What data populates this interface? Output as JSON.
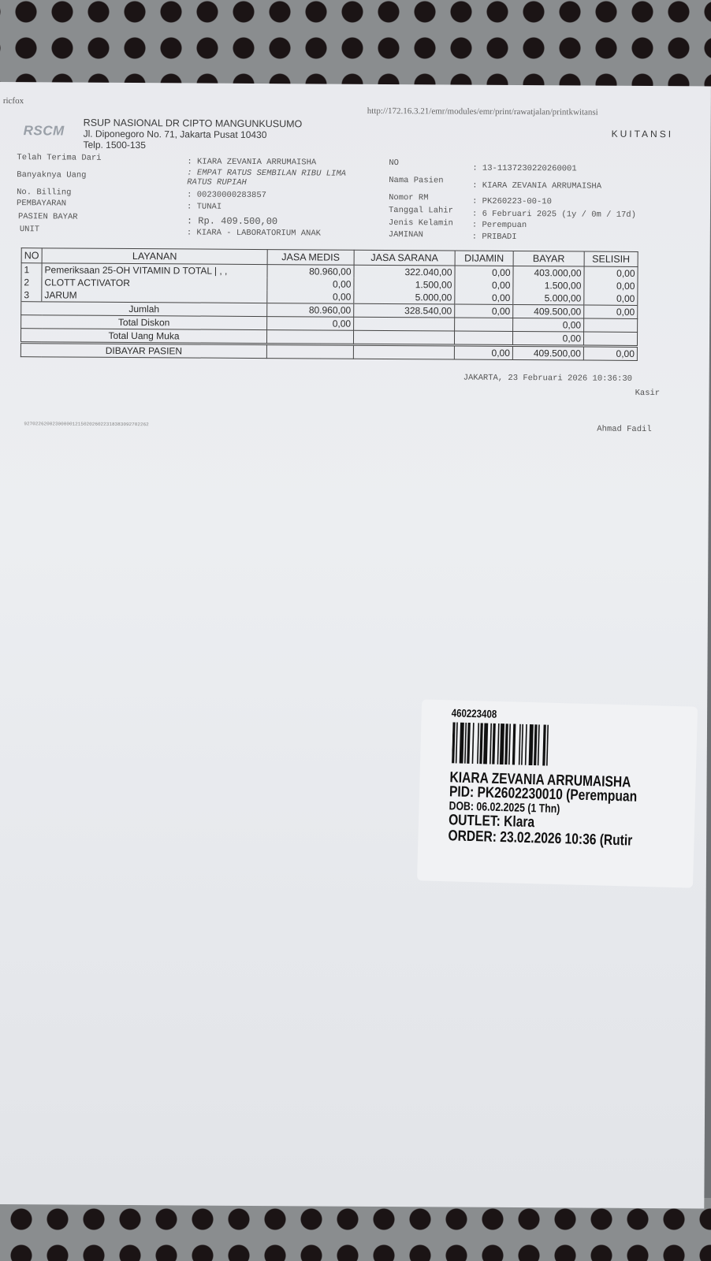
{
  "browser_header": {
    "left": "ricfox",
    "url": "http://172.16.3.21/emr/modules/emr/print/rawatjalan/printkwitansi"
  },
  "hospital": {
    "logo": "RSCM",
    "name": "RSUP NASIONAL DR CIPTO MANGUNKUSUMO",
    "address": "Jl. Diponegoro No. 71, Jakarta Pusat 10430",
    "phone": "Telp. 1500-135"
  },
  "doc_title": "KUITANSI",
  "left_fields": [
    {
      "label": "Telah Terima Dari",
      "value": ": KIARA ZEVANIA ARRUMAISHA"
    },
    {
      "label": "Banyaknya Uang",
      "value": ": EMPAT RATUS SEMBILAN RIBU LIMA",
      "value2": "RATUS RUPIAH"
    },
    {
      "label": "No. Billing",
      "value": ": 00230000283857"
    },
    {
      "label": "PEMBAYARAN",
      "value": ": TUNAI"
    },
    {
      "label": "PASIEN BAYAR",
      "value": ": Rp. 409.500,00"
    },
    {
      "label": "UNIT",
      "value": ": KIARA - LABORATORIUM ANAK"
    }
  ],
  "right_fields": [
    {
      "label": "NO",
      "value": ": 13-1137230220260001"
    },
    {
      "label": "Nama Pasien",
      "value": ": KIARA ZEVANIA ARRUMAISHA"
    },
    {
      "label": "Nomor RM",
      "value": ": PK260223-00-10"
    },
    {
      "label": "Tanggal Lahir",
      "value": ": 6 Februari 2025 (1y / 0m / 17d)"
    },
    {
      "label": "Jenis Kelamin",
      "value": ": Perempuan"
    },
    {
      "label": "JAMINAN",
      "value": ": PRIBADI"
    }
  ],
  "table": {
    "headers": [
      "NO",
      "LAYANAN",
      "JASA MEDIS",
      "JASA SARANA",
      "DIJAMIN",
      "BAYAR",
      "SELISIH"
    ],
    "rows": [
      [
        "1",
        "Pemeriksaan 25-OH VITAMIN D TOTAL | , ,",
        "80.960,00",
        "322.040,00",
        "0,00",
        "403.000,00",
        "0,00"
      ],
      [
        "2",
        "CLOTT ACTIVATOR",
        "0,00",
        "1.500,00",
        "0,00",
        "1.500,00",
        "0,00"
      ],
      [
        "3",
        "JARUM",
        "0,00",
        "5.000,00",
        "0,00",
        "5.000,00",
        "0,00"
      ]
    ],
    "jumlah": {
      "label": "Jumlah",
      "jasa_medis": "80.960,00",
      "jasa_sarana": "328.540,00",
      "dijamin": "0,00",
      "bayar": "409.500,00",
      "selisih": "0,00"
    },
    "total_diskon": {
      "label": "Total Diskon",
      "jasa_medis": "0,00",
      "bayar": "0,00"
    },
    "total_uang_muka": {
      "label": "Total Uang Muka",
      "bayar": "0,00"
    },
    "dibayar_pasien": {
      "label": "DIBAYAR PASIEN",
      "dijamin": "0,00",
      "bayar": "409.500,00",
      "selisih": "0,00"
    }
  },
  "footer": {
    "place_date": "JAKARTA, 23 Februari 2026 10:36:30",
    "role": "Kasir",
    "cashier": "Ahmad Fadil",
    "code": "92702262002300000121502026022318383092702262"
  },
  "sticker": {
    "number": "460223408",
    "name": "KIARA ZEVANIA ARRUMAISHA",
    "pid": "PID: PK2602230010 (Perempuan",
    "dob": "DOB: 06.02.2025 (1 Thn)",
    "outlet": "OUTLET: Klara",
    "order": "ORDER: 23.02.2026 10:36 (Rutir"
  }
}
